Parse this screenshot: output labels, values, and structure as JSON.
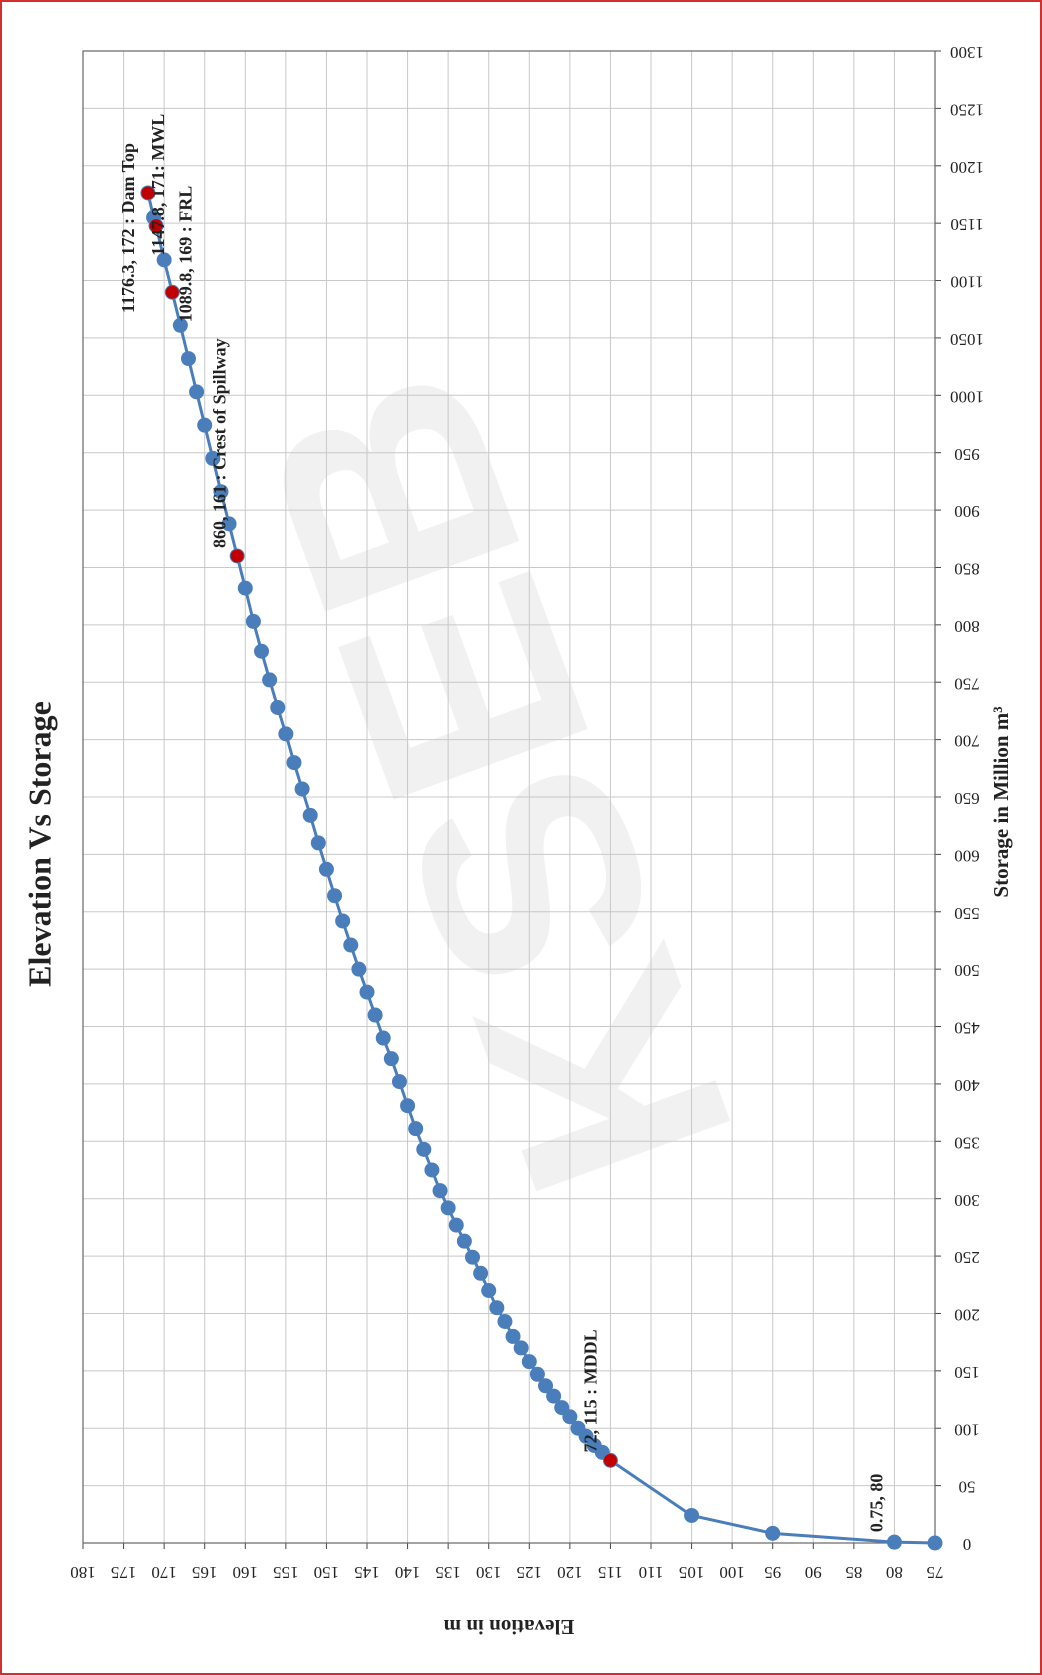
{
  "chart_data": {
    "type": "scatter-line",
    "title": "Elevation Vs Storage",
    "xlabel": "Storage in Million m³",
    "ylabel": "Elevation in m",
    "watermark": "KSEB",
    "color": "#4a7ebb",
    "highlight_color": "#c00000",
    "grid": true,
    "x": [
      0,
      0.75,
      8.4,
      24,
      72,
      79,
      85,
      93,
      100,
      110,
      118,
      128,
      137,
      147,
      158,
      170,
      180,
      193,
      205,
      220,
      235,
      249,
      263,
      277,
      292,
      307,
      325,
      343,
      361,
      381,
      402,
      422,
      440,
      460,
      480,
      500,
      521,
      542,
      564,
      587,
      610,
      634,
      657,
      680,
      705,
      728,
      752,
      777,
      803,
      832,
      860,
      888,
      916,
      945,
      974,
      1003,
      1032,
      1061,
      1089.8,
      1118,
      1147.8,
      1155,
      1176.3
    ],
    "values": [
      75,
      80,
      95,
      105,
      115,
      116,
      117,
      118,
      119,
      120,
      121,
      122,
      123,
      124,
      125,
      126,
      127,
      128,
      129,
      130,
      131,
      132,
      133,
      134,
      135,
      136,
      137,
      138,
      139,
      140,
      141,
      142,
      143,
      144,
      145,
      146,
      147,
      148,
      149,
      150,
      151,
      152,
      153,
      154,
      155,
      156,
      157,
      158,
      159,
      160,
      161,
      162,
      163,
      164,
      165,
      166,
      167,
      168,
      169,
      170,
      171,
      171.3,
      172
    ],
    "annotations": [
      {
        "text": "0.75, 80",
        "x": 0.75,
        "y": 80,
        "marker": false
      },
      {
        "text": "72, 115 : MDDL",
        "x": 72,
        "y": 115,
        "marker": true
      },
      {
        "text": "860, 161 : Crest of Spillway",
        "x": 860,
        "y": 161,
        "marker": true
      },
      {
        "text": "1089.8, 169 : FRL",
        "x": 1089.8,
        "y": 169,
        "marker": true
      },
      {
        "text": "1147.8, 171: MWL",
        "x": 1147.8,
        "y": 171,
        "marker": true
      },
      {
        "text": "1176.3, 172 : Dam Top",
        "x": 1176.3,
        "y": 172,
        "marker": true
      }
    ],
    "xlim": [
      0,
      1300
    ],
    "xticks": [
      0,
      50,
      100,
      150,
      200,
      250,
      300,
      350,
      400,
      450,
      500,
      550,
      600,
      650,
      700,
      750,
      800,
      850,
      900,
      950,
      1000,
      1050,
      1100,
      1150,
      1200,
      1250,
      1300
    ],
    "ylim": [
      75,
      180
    ],
    "yticks": [
      75,
      80,
      85,
      90,
      95,
      100,
      105,
      110,
      115,
      120,
      125,
      130,
      135,
      140,
      145,
      150,
      155,
      160,
      165,
      170,
      175,
      180
    ]
  }
}
